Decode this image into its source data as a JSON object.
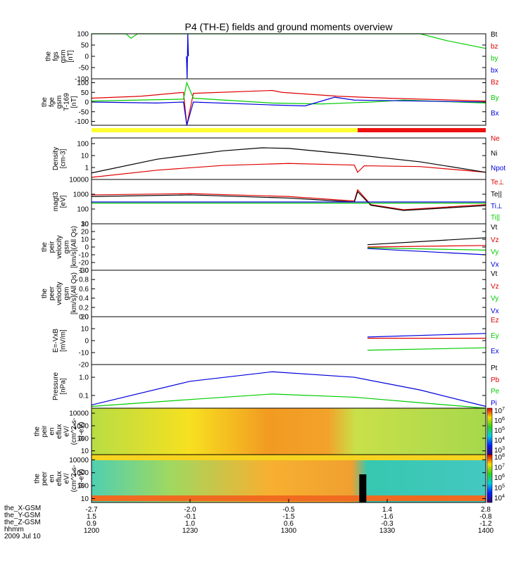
{
  "chart_data": {
    "type": "line",
    "title": "P4 (TH-E) fields and ground moments overview",
    "x_axis": {
      "label": "hhmm",
      "date": "2009 Jul 10",
      "ticks": [
        "1200",
        "1230",
        "1300",
        "1330",
        "1400"
      ],
      "range": [
        "12:00",
        "14:00"
      ],
      "extra_rows": [
        {
          "label": "the_X-GSM",
          "values": [
            "-2.7",
            "-2.0",
            "-0.5",
            "1.4",
            "2.8"
          ]
        },
        {
          "label": "the_Y-GSM",
          "values": [
            "1.5",
            "-0.1",
            "-1.5",
            "-1.6",
            "-0.8"
          ]
        },
        {
          "label": "the_Z-GSM",
          "values": [
            "0.9",
            "1.0",
            "0.6",
            "-0.3",
            "-1.2"
          ]
        }
      ]
    },
    "panels": [
      {
        "id": "fgs",
        "ylabel": [
          "the",
          "fgs",
          "gsm",
          "[nT]"
        ],
        "ylim": [
          -100,
          100
        ],
        "yticks": [
          "-100",
          "-50",
          "0",
          "50",
          "100"
        ],
        "series": [
          {
            "name": "Bt",
            "color": "#000000",
            "values": []
          },
          {
            "name": "bz",
            "color": "#e00000",
            "values": []
          },
          {
            "name": "by",
            "color": "#00cc00",
            "values": [
              [
                0,
                100
              ],
              [
                9,
                100
              ],
              [
                10.5,
                100
              ],
              [
                12,
                80
              ],
              [
                14,
                100
              ],
              [
                30,
                100
              ],
              [
                100,
                100
              ],
              [
                108,
                70
              ],
              [
                120,
                35
              ]
            ]
          },
          {
            "name": "bx",
            "color": "#0000dd",
            "values": [
              [
                28.9,
                0
              ],
              [
                29.1,
                -100
              ],
              [
                29.3,
                100
              ],
              [
                29.5,
                0
              ]
            ]
          }
        ]
      },
      {
        "id": "fgs_fgh",
        "ylabel": [
          "the",
          "fge",
          "gsm",
          "T-169",
          "[nT]"
        ],
        "ylim": [
          -120,
          120
        ],
        "yticks": [
          "-100",
          "-50",
          "0",
          "50",
          "100"
        ],
        "series": [
          {
            "name": "Bz",
            "color": "#e00000",
            "values": [
              [
                0,
                20
              ],
              [
                15,
                30
              ],
              [
                28,
                50
              ],
              [
                29,
                -120
              ],
              [
                31,
                45
              ],
              [
                55,
                60
              ],
              [
                58,
                50
              ],
              [
                75,
                30
              ],
              [
                90,
                20
              ],
              [
                120,
                5
              ]
            ]
          },
          {
            "name": "By",
            "color": "#00cc00",
            "values": [
              [
                0,
                5
              ],
              [
                28,
                15
              ],
              [
                29,
                100
              ],
              [
                31,
                20
              ],
              [
                55,
                -5
              ],
              [
                70,
                -10
              ],
              [
                85,
                0
              ],
              [
                95,
                10
              ],
              [
                120,
                -5
              ]
            ]
          },
          {
            "name": "Bx",
            "color": "#0000dd",
            "values": [
              [
                0,
                0
              ],
              [
                20,
                -5
              ],
              [
                28,
                0
              ],
              [
                29,
                -120
              ],
              [
                31,
                0
              ],
              [
                55,
                -15
              ],
              [
                65,
                -20
              ],
              [
                74,
                25
              ],
              [
                80,
                10
              ],
              [
                120,
                0
              ]
            ]
          }
        ]
      },
      {
        "id": "density",
        "ylabel": [
          "Density",
          "[cm-3]"
        ],
        "ylim": [
          0.1,
          300
        ],
        "scale": "log",
        "yticks": [
          "1",
          "10",
          "100"
        ],
        "series": [
          {
            "name": "Ne",
            "color": "#e00000",
            "values": [
              [
                0,
                0.15
              ],
              [
                20,
                0.6
              ],
              [
                40,
                1.5
              ],
              [
                60,
                2.2
              ],
              [
                80,
                1.6
              ],
              [
                81,
                0.4
              ],
              [
                83,
                1.4
              ],
              [
                100,
                1.2
              ],
              [
                120,
                0.4
              ]
            ]
          },
          {
            "name": "Ni",
            "color": "#000000",
            "values": [
              [
                0,
                0.35
              ],
              [
                20,
                5
              ],
              [
                40,
                25
              ],
              [
                52,
                45
              ],
              [
                60,
                40
              ],
              [
                80,
                12
              ],
              [
                100,
                3
              ],
              [
                120,
                0.4
              ]
            ]
          },
          {
            "name": "Npot",
            "color": "#0000dd",
            "values": []
          }
        ]
      },
      {
        "id": "temp",
        "ylabel": [
          "magt3",
          "[eV]"
        ],
        "ylim": [
          10,
          10000
        ],
        "scale": "log",
        "yticks": [
          "10",
          "100",
          "1000",
          "10000"
        ],
        "series": [
          {
            "name": "Te⊥",
            "color": "#e00000",
            "values": [
              [
                0,
                900
              ],
              [
                30,
                1100
              ],
              [
                60,
                700
              ],
              [
                80,
                350
              ],
              [
                81,
                2000
              ],
              [
                85,
                200
              ],
              [
                95,
                90
              ],
              [
                120,
                200
              ]
            ]
          },
          {
            "name": "Te||",
            "color": "#000000",
            "values": [
              [
                0,
                700
              ],
              [
                30,
                900
              ],
              [
                60,
                550
              ],
              [
                80,
                300
              ],
              [
                81,
                1500
              ],
              [
                85,
                180
              ],
              [
                95,
                80
              ],
              [
                120,
                170
              ]
            ]
          },
          {
            "name": "Ti⊥",
            "color": "#0000dd",
            "values": [
              [
                0,
                300
              ],
              [
                120,
                300
              ]
            ]
          },
          {
            "name": "Ti||",
            "color": "#00cc00",
            "values": [
              [
                0,
                250
              ],
              [
                120,
                250
              ]
            ]
          }
        ]
      },
      {
        "id": "peir_vel",
        "ylabel": [
          "the",
          "peir",
          "velocity",
          "gsm",
          "[km/s](All Qs)"
        ],
        "ylim": [
          -30,
          30
        ],
        "yticks": [
          "-30",
          "-20",
          "-10",
          "0",
          "10",
          "20",
          "30"
        ],
        "series": [
          {
            "name": "Vt",
            "color": "#000000",
            "values": [
              [
                84,
                3
              ],
              [
                120,
                12
              ]
            ]
          },
          {
            "name": "Vz",
            "color": "#e00000",
            "values": [
              [
                84,
                0
              ],
              [
                120,
                2
              ]
            ]
          },
          {
            "name": "Vy",
            "color": "#00cc00",
            "values": [
              [
                84,
                -1
              ],
              [
                120,
                -4
              ]
            ]
          },
          {
            "name": "Vx",
            "color": "#0000dd",
            "values": [
              [
                84,
                -2
              ],
              [
                120,
                -10
              ]
            ]
          }
        ]
      },
      {
        "id": "peer_vel",
        "ylabel": [
          "the",
          "peer",
          "velocity",
          "gsm",
          "[km/s](All Qs)"
        ],
        "ylim": [
          0,
          1
        ],
        "yticks": [
          "0.0",
          "0.2",
          "0.4",
          "0.6",
          "0.8",
          "1.0"
        ],
        "series": [
          {
            "name": "Vt",
            "color": "#000000",
            "values": []
          },
          {
            "name": "Vz",
            "color": "#e00000",
            "values": []
          },
          {
            "name": "Vy",
            "color": "#00cc00",
            "values": []
          },
          {
            "name": "Vx",
            "color": "#0000dd",
            "values": []
          }
        ]
      },
      {
        "id": "efield",
        "ylabel": [
          "E=-VxB",
          "[mV/m]"
        ],
        "ylim": [
          -20,
          20
        ],
        "yticks": [
          "-20",
          "-10",
          "0",
          "10",
          "20"
        ],
        "series": [
          {
            "name": "Ez",
            "color": "#e00000",
            "values": [
              [
                84,
                2
              ],
              [
                120,
                2
              ]
            ]
          },
          {
            "name": "Ey",
            "color": "#00cc00",
            "values": [
              [
                84,
                -8
              ],
              [
                120,
                -6
              ]
            ]
          },
          {
            "name": "Ex",
            "color": "#0000dd",
            "values": [
              [
                84,
                3
              ],
              [
                120,
                6
              ]
            ]
          }
        ]
      },
      {
        "id": "pressure",
        "ylabel": [
          "Pressure",
          "[nPa]"
        ],
        "ylim": [
          0.02,
          5
        ],
        "scale": "log",
        "yticks": [
          "0.1",
          "1.0"
        ],
        "series": [
          {
            "name": "Pt",
            "color": "#000000",
            "values": []
          },
          {
            "name": "Pb",
            "color": "#e00000",
            "values": []
          },
          {
            "name": "Pe",
            "color": "#00cc00",
            "values": [
              [
                0,
                0.025
              ],
              [
                30,
                0.06
              ],
              [
                55,
                0.12
              ],
              [
                80,
                0.08
              ],
              [
                100,
                0.04
              ],
              [
                120,
                0.02
              ]
            ]
          },
          {
            "name": "Pi",
            "color": "#0000dd",
            "values": [
              [
                0,
                0.03
              ],
              [
                30,
                0.6
              ],
              [
                55,
                2.0
              ],
              [
                80,
                1.0
              ],
              [
                100,
                0.2
              ],
              [
                120,
                0.025
              ]
            ]
          }
        ]
      },
      {
        "id": "peir_eflux",
        "type": "heatmap",
        "ylabel": [
          "the",
          "peir",
          "en",
          "eflux",
          "eV/",
          "(cm^2-s-",
          "sr-eV)"
        ],
        "ylim": [
          5,
          25000
        ],
        "scale": "log",
        "yticks": [
          "10",
          "100",
          "1000",
          "10000"
        ],
        "colorbar": [
          "10^3",
          "10^4",
          "10^5",
          "10^6",
          "10^7"
        ]
      },
      {
        "id": "peer_eflux",
        "type": "heatmap",
        "ylabel": [
          "the",
          "peer",
          "en",
          "eflux",
          "eV/",
          "(cm^2-s-",
          "sr-eV)"
        ],
        "ylim": [
          5,
          25000
        ],
        "scale": "log",
        "yticks": [
          "10",
          "100",
          "1000",
          "10000"
        ],
        "colorbar": [
          "10^4",
          "10^5",
          "10^6",
          "10^7",
          "10^8"
        ]
      }
    ],
    "mode_bar": [
      {
        "from": 0,
        "to": 81,
        "color": "#ffff33"
      },
      {
        "from": 81,
        "to": 120,
        "color": "#ee1111"
      }
    ]
  }
}
